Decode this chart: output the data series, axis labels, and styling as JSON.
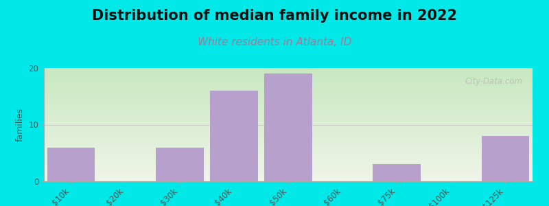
{
  "title": "Distribution of median family income in 2022",
  "subtitle": "White residents in Atlanta, ID",
  "ylabel": "families",
  "categories": [
    "$10k",
    "$20k",
    "$30k",
    "$40k",
    "$50k",
    "$60k",
    "$75k",
    "$100k",
    ">$125k"
  ],
  "values": [
    6,
    0,
    6,
    16,
    19,
    0,
    3,
    0,
    8
  ],
  "bar_color": "#b8a0cc",
  "background_top": "#c8e8c0",
  "background_bottom": "#f0f5e8",
  "outer_bg": "#00e8e8",
  "ylim": [
    0,
    20
  ],
  "yticks": [
    0,
    10,
    20
  ],
  "title_fontsize": 15,
  "subtitle_fontsize": 11,
  "ylabel_fontsize": 9,
  "tick_fontsize": 8.5,
  "grid_color": "#cccccc",
  "subtitle_color": "#aa7799",
  "watermark": "City-Data.com",
  "watermark_color": "#bbbbbb"
}
